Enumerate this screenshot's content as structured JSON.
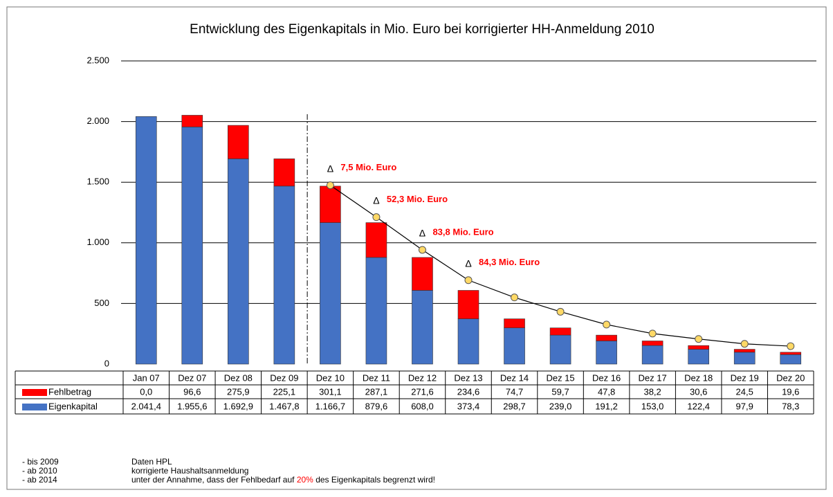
{
  "chart_data": {
    "type": "bar",
    "stacked": true,
    "title": "Entwicklung des Eigenkapitals in Mio. Euro bei korrigierter HH-Anmeldung 2010",
    "categories": [
      "Jan 07",
      "Dez 07",
      "Dez 08",
      "Dez 09",
      "Dez 10",
      "Dez 11",
      "Dez 12",
      "Dez 13",
      "Dez 14",
      "Dez 15",
      "Dez 16",
      "Dez 17",
      "Dez 18",
      "Dez 19",
      "Dez 20"
    ],
    "series": [
      {
        "name": "Fehlbetrag",
        "color": "#ff0000",
        "values": [
          0.0,
          96.6,
          275.9,
          225.1,
          301.1,
          287.1,
          271.6,
          234.6,
          74.7,
          59.7,
          47.8,
          38.2,
          30.6,
          24.5,
          19.6
        ],
        "value_labels": [
          "0,0",
          "96,6",
          "275,9",
          "225,1",
          "301,1",
          "287,1",
          "271,6",
          "234,6",
          "74,7",
          "59,7",
          "47,8",
          "38,2",
          "30,6",
          "24,5",
          "19,6"
        ]
      },
      {
        "name": "Eigenkapital",
        "color": "#4472c4",
        "values": [
          2041.4,
          1955.6,
          1692.9,
          1467.8,
          1166.7,
          879.6,
          608.0,
          373.4,
          298.7,
          239.0,
          191.2,
          153.0,
          122.4,
          97.9,
          78.3
        ],
        "value_labels": [
          "2.041,4",
          "1.955,6",
          "1.692,9",
          "1.467,8",
          "1.166,7",
          "879,6",
          "608,0",
          "373,4",
          "298,7",
          "239,0",
          "191,2",
          "153,0",
          "122,4",
          "97,9",
          "78,3"
        ]
      }
    ],
    "line": {
      "color": "#000000",
      "marker_color": "#ffd966",
      "values": [
        null,
        null,
        null,
        null,
        1475,
        1212,
        942,
        692,
        550,
        432,
        326,
        252,
        207,
        167,
        148
      ]
    },
    "annotations": [
      {
        "category": "Dez 10",
        "symbol": "Δ",
        "text": "7,5 Mio. Euro"
      },
      {
        "category": "Dez 11",
        "symbol": "Δ",
        "text": "52,3 Mio. Euro"
      },
      {
        "category": "Dez 12",
        "symbol": "Δ",
        "text": "83,8 Mio. Euro"
      },
      {
        "category": "Dez 13",
        "symbol": "Δ",
        "text": "84,3 Mio. Euro"
      }
    ],
    "ylim": [
      0,
      2500
    ],
    "yticks": [
      0,
      500,
      {
        "value": 1000,
        "label": "1.000"
      },
      {
        "value": 1500,
        "label": "1.500"
      },
      {
        "value": 2000,
        "label": "2.000"
      },
      {
        "value": 2500,
        "label": "2.500"
      }
    ],
    "grid": true,
    "divider_after": "Dez 09",
    "footnotes": [
      {
        "label": "- bis 2009",
        "parts": [
          "Daten HPL"
        ]
      },
      {
        "label": "- ab 2010",
        "parts": [
          "korrigierte Haushaltsanmeldung"
        ]
      },
      {
        "label": "- ab 2014",
        "parts": [
          "unter der Annahme, dass der Fehlbedarf auf ",
          "20%",
          " des Eigenkapitals begrenzt wird!"
        ]
      }
    ]
  }
}
